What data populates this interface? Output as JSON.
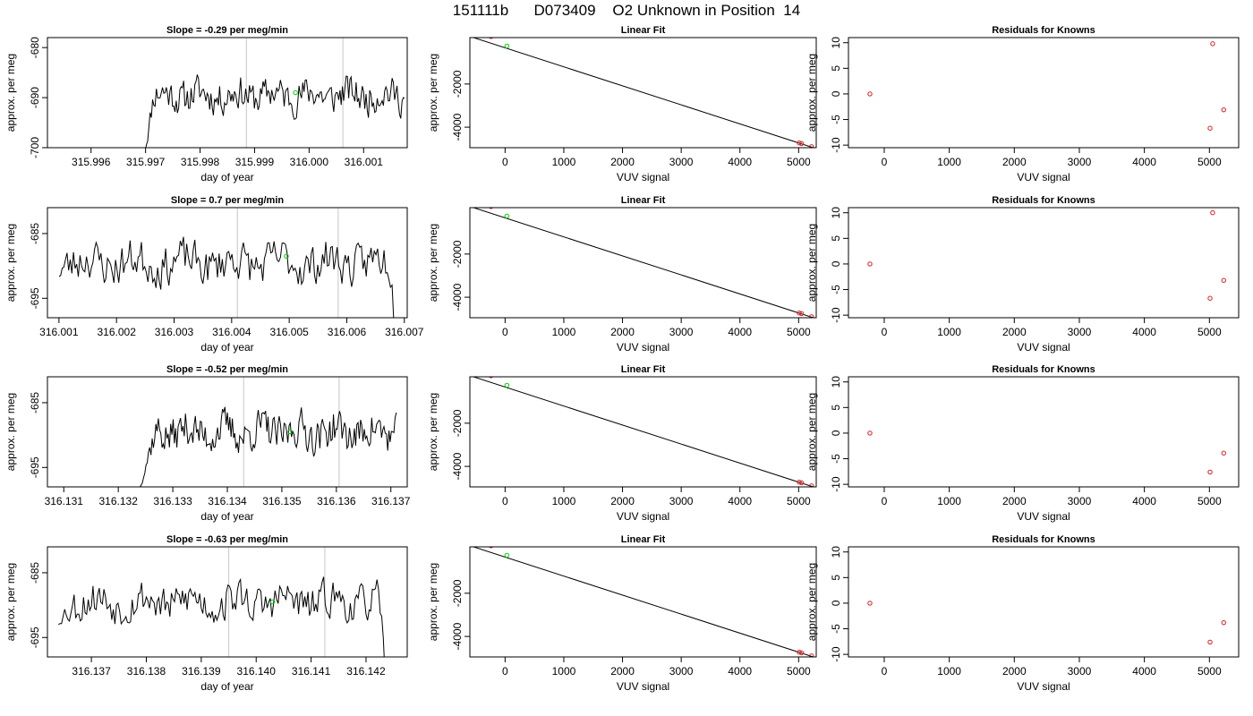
{
  "figure": {
    "title": "151111b      D073409    O2 Unknown in Position  14"
  },
  "chart_data": [
    {
      "type": "line",
      "row": 0,
      "col": 0,
      "title": "Slope =  -0.29  per meg/min",
      "xlabel": "day of year",
      "ylabel": "approx. per meg",
      "xlim": [
        315.9952,
        316.0018
      ],
      "ylim": [
        -700,
        -678
      ],
      "xticks": [
        "315.996",
        "315.997",
        "315.998",
        "315.999",
        "316.000",
        "316.001"
      ],
      "xtick_values": [
        315.996,
        315.997,
        315.998,
        315.999,
        316.0,
        316.001
      ],
      "yticks": [
        "-680",
        "-690",
        "-700"
      ],
      "ytick_values": [
        -680,
        -690,
        -700
      ],
      "vlines": [
        315.99885,
        316.00062
      ],
      "series": {
        "x_start": 315.99697,
        "x_end": 316.00175,
        "base": -689.5,
        "amp": 3.0,
        "seed": 11,
        "ramp_end": 315.99715,
        "ramp_from": -702,
        "tail_drop": null
      },
      "marker": {
        "x": 315.99975,
        "y": -689,
        "color": "#00cc00"
      }
    },
    {
      "type": "scatter",
      "row": 0,
      "col": 1,
      "title": "Linear Fit",
      "xlabel": "VUV signal",
      "ylabel": "approx. per meg",
      "xlim": [
        -600,
        5300
      ],
      "ylim": [
        -4950,
        150
      ],
      "xticks": [
        "0",
        "1000",
        "2000",
        "3000",
        "4000",
        "5000"
      ],
      "xtick_values": [
        0,
        1000,
        2000,
        3000,
        4000,
        5000
      ],
      "yticks": [
        "-2000",
        "-4000"
      ],
      "ytick_values": [
        -2000,
        -4000
      ],
      "line": {
        "x": [
          -560,
          5250
        ],
        "y": [
          170,
          -4950
        ]
      },
      "points_red": [
        [
          -240,
          200
        ],
        [
          5010,
          -4730
        ],
        [
          5050,
          -4760
        ],
        [
          5220,
          -4900
        ]
      ],
      "points_green": [
        [
          30,
          -240
        ]
      ]
    },
    {
      "type": "scatter",
      "row": 0,
      "col": 2,
      "title": "Residuals for Knowns",
      "xlabel": "VUV signal",
      "ylabel": "approx. per meg",
      "xlim": [
        -550,
        5450
      ],
      "ylim": [
        -10.5,
        11
      ],
      "xticks": [
        "0",
        "1000",
        "2000",
        "3000",
        "4000",
        "5000"
      ],
      "xtick_values": [
        0,
        1000,
        2000,
        3000,
        4000,
        5000
      ],
      "yticks": [
        "10",
        "5",
        "0",
        "-5",
        "-10"
      ],
      "ytick_values": [
        10,
        5,
        0,
        -5,
        -10
      ],
      "points_red": [
        [
          -220,
          0
        ],
        [
          5050,
          9.8
        ],
        [
          5220,
          -3.1
        ],
        [
          5010,
          -6.7
        ]
      ]
    },
    {
      "type": "line",
      "row": 1,
      "col": 0,
      "title": "Slope =  0.7  per meg/min",
      "xlabel": "day of year",
      "ylabel": "approx. per meg",
      "xlim": [
        316.0008,
        316.00705
      ],
      "ylim": [
        -698,
        -681
      ],
      "xticks": [
        "316.001",
        "316.002",
        "316.003",
        "316.004",
        "316.005",
        "316.006",
        "316.007"
      ],
      "xtick_values": [
        316.001,
        316.002,
        316.003,
        316.004,
        316.005,
        316.006,
        316.007
      ],
      "yticks": [
        "-685",
        "-695"
      ],
      "ytick_values": [
        -685,
        -695
      ],
      "vlines": [
        316.0041,
        316.00585
      ],
      "series": {
        "x_start": 316.001,
        "x_end": 316.0069,
        "base": -689.5,
        "amp": 2.8,
        "seed": 23,
        "ramp_end": null,
        "ramp_from": null,
        "tail_drop": 316.00675
      },
      "marker": {
        "x": 316.00495,
        "y": -688.5,
        "color": "#00cc00"
      }
    },
    {
      "type": "scatter",
      "row": 1,
      "col": 1,
      "title": "Linear Fit",
      "xlabel": "VUV signal",
      "ylabel": "approx. per meg",
      "xlim": [
        -600,
        5300
      ],
      "ylim": [
        -4950,
        150
      ],
      "xticks": [
        "0",
        "1000",
        "2000",
        "3000",
        "4000",
        "5000"
      ],
      "xtick_values": [
        0,
        1000,
        2000,
        3000,
        4000,
        5000
      ],
      "yticks": [
        "-2000",
        "-4000"
      ],
      "ytick_values": [
        -2000,
        -4000
      ],
      "line": {
        "x": [
          -560,
          5250
        ],
        "y": [
          170,
          -4950
        ]
      },
      "points_red": [
        [
          -240,
          200
        ],
        [
          5010,
          -4730
        ],
        [
          5050,
          -4760
        ],
        [
          5220,
          -4900
        ]
      ],
      "points_green": [
        [
          30,
          -240
        ]
      ]
    },
    {
      "type": "scatter",
      "row": 1,
      "col": 2,
      "title": "Residuals for Knowns",
      "xlabel": "VUV signal",
      "ylabel": "approx. per meg",
      "xlim": [
        -550,
        5450
      ],
      "ylim": [
        -10.5,
        11
      ],
      "xticks": [
        "0",
        "1000",
        "2000",
        "3000",
        "4000",
        "5000"
      ],
      "xtick_values": [
        0,
        1000,
        2000,
        3000,
        4000,
        5000
      ],
      "yticks": [
        "10",
        "5",
        "0",
        "-5",
        "-10"
      ],
      "ytick_values": [
        10,
        5,
        0,
        -5,
        -10
      ],
      "points_red": [
        [
          -220,
          0
        ],
        [
          5050,
          10
        ],
        [
          5220,
          -3.2
        ],
        [
          5010,
          -6.7
        ]
      ]
    },
    {
      "type": "line",
      "row": 2,
      "col": 0,
      "title": "Slope =  -0.52  per meg/min",
      "xlabel": "day of year",
      "ylabel": "approx. per meg",
      "xlim": [
        316.1307,
        316.1373
      ],
      "ylim": [
        -698,
        -681
      ],
      "xticks": [
        "316.131",
        "316.132",
        "316.133",
        "316.134",
        "316.135",
        "316.136",
        "316.137"
      ],
      "xtick_values": [
        316.131,
        316.132,
        316.133,
        316.134,
        316.135,
        316.136,
        316.137
      ],
      "yticks": [
        "-685",
        "-695"
      ],
      "ytick_values": [
        -685,
        -695
      ],
      "vlines": [
        316.1343,
        316.13605
      ],
      "series": {
        "x_start": 316.13235,
        "x_end": 316.1371,
        "base": -689.5,
        "amp": 2.6,
        "seed": 37,
        "ramp_end": 316.1327,
        "ramp_from": -699,
        "tail_drop": null
      },
      "marker": {
        "x": 316.13515,
        "y": -689.5,
        "color": "#00cc00"
      }
    },
    {
      "type": "scatter",
      "row": 2,
      "col": 1,
      "title": "Linear Fit",
      "xlabel": "VUV signal",
      "ylabel": "approx. per meg",
      "xlim": [
        -600,
        5300
      ],
      "ylim": [
        -4950,
        150
      ],
      "xticks": [
        "0",
        "1000",
        "2000",
        "3000",
        "4000",
        "5000"
      ],
      "xtick_values": [
        0,
        1000,
        2000,
        3000,
        4000,
        5000
      ],
      "yticks": [
        "-2000",
        "-4000"
      ],
      "ytick_values": [
        -2000,
        -4000
      ],
      "line": {
        "x": [
          -560,
          5250
        ],
        "y": [
          170,
          -4950
        ]
      },
      "points_red": [
        [
          -240,
          200
        ],
        [
          5010,
          -4730
        ],
        [
          5050,
          -4760
        ],
        [
          5220,
          -4900
        ]
      ],
      "points_green": [
        [
          30,
          -240
        ]
      ]
    },
    {
      "type": "scatter",
      "row": 2,
      "col": 2,
      "title": "Residuals for Knowns",
      "xlabel": "VUV signal",
      "ylabel": "approx. per meg",
      "xlim": [
        -550,
        5450
      ],
      "ylim": [
        -10.5,
        11
      ],
      "xticks": [
        "0",
        "1000",
        "2000",
        "3000",
        "4000",
        "5000"
      ],
      "xtick_values": [
        0,
        1000,
        2000,
        3000,
        4000,
        5000
      ],
      "yticks": [
        "10",
        "5",
        "0",
        "-5",
        "-10"
      ],
      "ytick_values": [
        10,
        5,
        0,
        -5,
        -10
      ],
      "points_red": [
        [
          -220,
          0
        ],
        [
          5220,
          -3.9
        ],
        [
          5010,
          -7.6
        ]
      ]
    },
    {
      "type": "line",
      "row": 3,
      "col": 0,
      "title": "Slope =  -0.63  per meg/min",
      "xlabel": "day of year",
      "ylabel": "approx. per meg",
      "xlim": [
        316.1362,
        316.14275
      ],
      "ylim": [
        -698,
        -681
      ],
      "xticks": [
        "316.137",
        "316.138",
        "316.139",
        "316.140",
        "316.141",
        "316.142"
      ],
      "xtick_values": [
        316.137,
        316.138,
        316.139,
        316.14,
        316.141,
        316.142
      ],
      "yticks": [
        "-685",
        "-695"
      ],
      "ytick_values": [
        -685,
        -695
      ],
      "vlines": [
        316.1395,
        316.14125
      ],
      "series": {
        "x_start": 316.1364,
        "x_end": 316.1424,
        "base": -689.5,
        "amp": 2.6,
        "seed": 53,
        "ramp_end": 316.1366,
        "ramp_from": -693,
        "tail_drop": 316.1422
      },
      "marker": {
        "x": 316.1403,
        "y": -689.5,
        "color": "#00cc00"
      }
    },
    {
      "type": "scatter",
      "row": 3,
      "col": 1,
      "title": "Linear Fit",
      "xlabel": "VUV signal",
      "ylabel": "approx. per meg",
      "xlim": [
        -600,
        5300
      ],
      "ylim": [
        -4950,
        150
      ],
      "xticks": [
        "0",
        "1000",
        "2000",
        "3000",
        "4000",
        "5000"
      ],
      "xtick_values": [
        0,
        1000,
        2000,
        3000,
        4000,
        5000
      ],
      "yticks": [
        "-2000",
        "-4000"
      ],
      "ytick_values": [
        -2000,
        -4000
      ],
      "line": {
        "x": [
          -560,
          5250
        ],
        "y": [
          170,
          -4950
        ]
      },
      "points_red": [
        [
          -240,
          200
        ],
        [
          5010,
          -4730
        ],
        [
          5050,
          -4760
        ],
        [
          5220,
          -4900
        ]
      ],
      "points_green": [
        [
          30,
          -240
        ]
      ]
    },
    {
      "type": "scatter",
      "row": 3,
      "col": 2,
      "title": "Residuals for Knowns",
      "xlabel": "VUV signal",
      "ylabel": "approx. per meg",
      "xlim": [
        -550,
        5450
      ],
      "ylim": [
        -10.5,
        11
      ],
      "xticks": [
        "0",
        "1000",
        "2000",
        "3000",
        "4000",
        "5000"
      ],
      "xtick_values": [
        0,
        1000,
        2000,
        3000,
        4000,
        5000
      ],
      "yticks": [
        "10",
        "5",
        "0",
        "-5",
        "-10"
      ],
      "ytick_values": [
        10,
        5,
        0,
        -5,
        -10
      ],
      "points_red": [
        [
          -220,
          0
        ],
        [
          5220,
          -3.8
        ],
        [
          5010,
          -7.6
        ]
      ]
    }
  ]
}
